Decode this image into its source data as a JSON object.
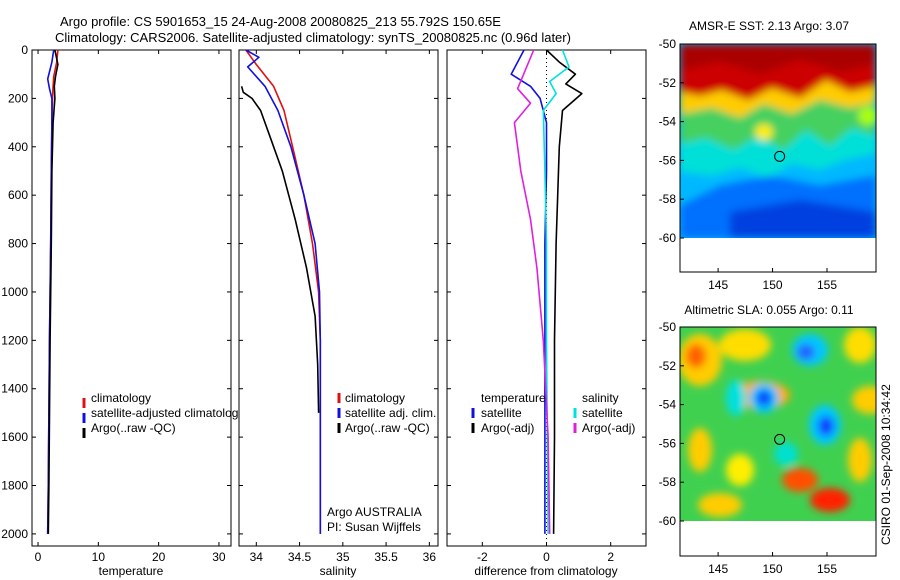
{
  "header": {
    "line1": "Argo profile: CS 5901653_15 24-Aug-2008 20080825_213 55.792S 150.65E",
    "line2": "Climatology: CARS2006. Satellite-adjusted climatology: synTS_20080825.nc (0.96d later)"
  },
  "footer_stamp": "CSIRO 01-Sep-2008 10:34:42",
  "colors": {
    "climatology": "#e01010",
    "satellite": "#1010e0",
    "argo": "#000000",
    "satellite_s": "#00e0e0",
    "argo_s": "#e020e0",
    "zero": "#000000"
  },
  "chart_data": [
    {
      "type": "line",
      "id": "temperature",
      "xlabel": "temperature",
      "xlim": [
        -1,
        32
      ],
      "ylim": [
        2050,
        0
      ],
      "y_reversed": true,
      "xticks": [
        "0",
        "10",
        "20",
        "30"
      ],
      "xtick_values": [
        0,
        10,
        20,
        30
      ],
      "yticks": [
        "0",
        "200",
        "400",
        "600",
        "800",
        "1000",
        "1200",
        "1400",
        "1600",
        "1800",
        "2000"
      ],
      "ytick_values": [
        0,
        200,
        400,
        600,
        800,
        1000,
        1200,
        1400,
        1600,
        1800,
        2000
      ],
      "legend": [
        "climatology",
        "satellite-adjusted climatolog",
        "Argo(..raw -QC)"
      ],
      "series": [
        {
          "name": "climatology",
          "color": "#e01010",
          "x": [
            3.3,
            3.1,
            2.6,
            2.5,
            2.4,
            2.3,
            2.2,
            2.1,
            2.0,
            1.9,
            1.8,
            1.7,
            1.6
          ],
          "y": [
            0,
            50,
            110,
            150,
            200,
            300,
            500,
            800,
            1000,
            1200,
            1500,
            1800,
            2000
          ]
        },
        {
          "name": "satellite-adjusted climatolog",
          "color": "#1010e0",
          "x": [
            2.6,
            2.3,
            1.6,
            1.9,
            2.3,
            2.3,
            2.2,
            2.1,
            2.0,
            1.9,
            1.8,
            1.7,
            1.6
          ],
          "y": [
            0,
            50,
            120,
            160,
            200,
            300,
            500,
            800,
            1000,
            1200,
            1500,
            1800,
            2000
          ]
        },
        {
          "name": "Argo(..raw -QC)",
          "color": "#000000",
          "x": [
            2.8,
            3.3,
            2.9,
            2.7,
            2.8,
            2.5,
            2.3,
            2.2,
            2.1,
            2.0,
            1.9,
            1.8,
            1.7
          ],
          "y": [
            0,
            60,
            110,
            150,
            200,
            300,
            500,
            800,
            1000,
            1200,
            1500,
            1800,
            2000
          ]
        }
      ]
    },
    {
      "type": "line",
      "id": "salinity",
      "xlabel": "salinity",
      "xlim": [
        33.8,
        36.1
      ],
      "ylim": [
        2050,
        0
      ],
      "y_reversed": true,
      "xticks": [
        "34",
        "34.5",
        "35",
        "35.5",
        "36"
      ],
      "xtick_values": [
        34,
        34.5,
        35,
        35.5,
        36
      ],
      "legend": [
        "climatology",
        "satellite adj. clim.",
        "Argo(..raw -QC)"
      ],
      "annotation": [
        "Argo AUSTRALIA",
        "PI: Susan Wijffels"
      ],
      "series": [
        {
          "name": "climatology",
          "color": "#e01010",
          "x": [
            33.88,
            34.0,
            34.2,
            34.32,
            34.42,
            34.55,
            34.65,
            34.72,
            34.74,
            34.74,
            34.74
          ],
          "y": [
            0,
            60,
            150,
            250,
            400,
            600,
            800,
            1000,
            1200,
            1600,
            2000
          ]
        },
        {
          "name": "satellite adj. clim.",
          "color": "#1010e0",
          "x": [
            33.88,
            34.03,
            33.9,
            34.1,
            34.25,
            34.4,
            34.55,
            34.68,
            34.73,
            34.74,
            34.74,
            34.74
          ],
          "y": [
            0,
            30,
            70,
            150,
            250,
            400,
            600,
            800,
            1000,
            1200,
            1600,
            2000
          ]
        },
        {
          "name": "Argo(..raw -QC)",
          "color": "#000000",
          "x": [
            33.83,
            33.85,
            33.95,
            34.05,
            34.15,
            34.3,
            34.45,
            34.58,
            34.68,
            34.71,
            34.72
          ],
          "y": [
            150,
            175,
            200,
            250,
            350,
            500,
            700,
            900,
            1100,
            1300,
            1500
          ]
        }
      ]
    },
    {
      "type": "line",
      "id": "difference",
      "xlabel": "difference from climatology",
      "xlim": [
        -3.1,
        3.1
      ],
      "ylim": [
        2050,
        0
      ],
      "y_reversed": true,
      "xticks": [
        "-2",
        "0",
        "2"
      ],
      "xtick_values": [
        -2,
        0,
        2
      ],
      "legend_groups": [
        {
          "title": "temperature",
          "items": [
            "satellite",
            "Argo(-adj)"
          ]
        },
        {
          "title": "salinity",
          "items": [
            "satellite",
            "Argo(-adj)"
          ]
        }
      ],
      "series": [
        {
          "name": "temperature satellite",
          "color": "#1010e0",
          "x": [
            -0.7,
            -0.9,
            -1.1,
            -0.5,
            -0.2,
            0.0,
            0.0,
            -0.05,
            -0.05,
            -0.05,
            -0.05
          ],
          "y": [
            0,
            50,
            100,
            150,
            200,
            300,
            500,
            800,
            1200,
            1600,
            2000
          ]
        },
        {
          "name": "temperature Argo(-adj)",
          "color": "#000000",
          "x": [
            0.0,
            0.4,
            0.9,
            0.6,
            1.1,
            0.5,
            0.4,
            0.35,
            0.3,
            0.25,
            0.25,
            0.22
          ],
          "y": [
            0,
            50,
            100,
            140,
            180,
            250,
            400,
            600,
            800,
            1200,
            1600,
            2000
          ]
        },
        {
          "name": "salinity satellite",
          "color": "#00e0e0",
          "x": [
            0.5,
            0.7,
            0.1,
            0.3,
            -0.1,
            -0.05,
            0.0,
            0.0,
            0.05
          ],
          "y": [
            0,
            70,
            130,
            180,
            250,
            500,
            800,
            1200,
            2000
          ]
        },
        {
          "name": "salinity Argo(-adj)",
          "color": "#e020e0",
          "x": [
            -0.4,
            -0.9,
            -0.5,
            -1.0,
            -0.8,
            -0.5,
            -0.3,
            -0.1,
            0.05,
            0.1
          ],
          "y": [
            0,
            160,
            220,
            300,
            500,
            700,
            900,
            1200,
            1600,
            2000
          ]
        }
      ]
    },
    {
      "type": "heatmap",
      "id": "sst-map",
      "title": "AMSR-E SST: 2.13 Argo: 3.07",
      "xlim": [
        141.5,
        159.5
      ],
      "ylim": [
        -60,
        -50
      ],
      "xticks": [
        "145",
        "150",
        "155"
      ],
      "xtick_values": [
        145,
        150,
        155
      ],
      "yticks": [
        "-50",
        "-52",
        "-54",
        "-56",
        "-58",
        "-60"
      ],
      "ytick_values": [
        -50,
        -52,
        -54,
        -56,
        -58,
        -60
      ],
      "marker": {
        "lon": 150.65,
        "lat": -55.792
      }
    },
    {
      "type": "heatmap",
      "id": "sla-map",
      "title": "Altimetric SLA: 0.055 Argo: 0.11",
      "xlim": [
        141.5,
        159.5
      ],
      "ylim": [
        -60,
        -50
      ],
      "xticks": [
        "145",
        "150",
        "155"
      ],
      "xtick_values": [
        145,
        150,
        155
      ],
      "yticks": [
        "-50",
        "-52",
        "-54",
        "-56",
        "-58",
        "-60"
      ],
      "ytick_values": [
        -50,
        -52,
        -54,
        -56,
        -58,
        -60
      ],
      "marker": {
        "lon": 150.65,
        "lat": -55.792
      }
    }
  ]
}
